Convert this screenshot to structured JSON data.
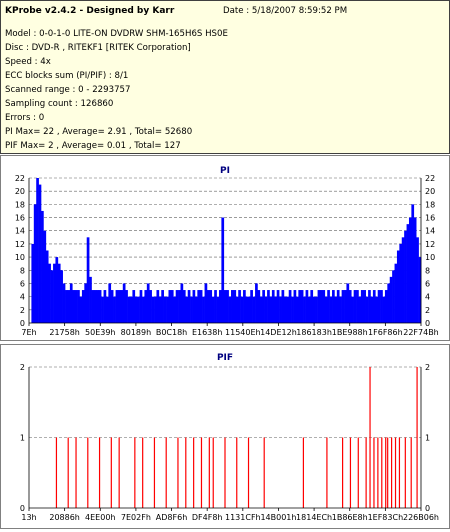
{
  "info": {
    "title": "KProbe v2.4.2 - Designed by Karr",
    "date": "Date : 5/18/2007 8:59:52 PM",
    "lines": [
      "Model : 0-0-1-0 LITE-ON DVDRW SHM-165H6S HS0E",
      "Disc : DVD-R , RITEKF1 [RITEK Corporation]",
      "Speed : 4x",
      "ECC blocks sum (PI/PIF) : 8/1",
      "Scanned range : 0 - 2293757",
      "Sampling count : 126860",
      "Errors : 0",
      "PI Max= 22 , Average= 2.91 , Total= 52680",
      "PIF Max= 2 , Average= 0.01 , Total= 127"
    ]
  },
  "colors": {
    "pi": "#0000ff",
    "pif": "#ff0000",
    "title": "#000080",
    "info_bg": "#ffffe1"
  },
  "chart_data": [
    {
      "type": "bar",
      "title": "PI",
      "ylim": [
        0,
        22
      ],
      "yticks": [
        0,
        2,
        4,
        6,
        8,
        10,
        12,
        14,
        16,
        18,
        20,
        22
      ],
      "xticks": [
        "7Eh",
        "21758h",
        "50E39h",
        "80189h",
        "B0C18h",
        "E1638h",
        "11540Eh",
        "14DE12h",
        "186183h",
        "1BE988h",
        "1F6F86h",
        "22F74Bh"
      ],
      "grid": "dashed-horizontal",
      "legend": "none",
      "series": [
        {
          "values": [
            0,
            12,
            18,
            22,
            21,
            17,
            14,
            11,
            9,
            8,
            9,
            10,
            9,
            8,
            6,
            5,
            5,
            6,
            5,
            5,
            5,
            4,
            5,
            6,
            13,
            7,
            5,
            5,
            5,
            5,
            4,
            5,
            4,
            6,
            5,
            4,
            5,
            5,
            5,
            6,
            5,
            4,
            4,
            5,
            4,
            4,
            5,
            4,
            5,
            6,
            5,
            4,
            4,
            5,
            4,
            5,
            4,
            4,
            5,
            5,
            4,
            5,
            5,
            6,
            5,
            4,
            5,
            4,
            5,
            4,
            5,
            5,
            4,
            6,
            5,
            5,
            4,
            5,
            4,
            5,
            16,
            5,
            5,
            4,
            5,
            5,
            4,
            5,
            4,
            5,
            4,
            4,
            5,
            4,
            6,
            5,
            4,
            5,
            4,
            5,
            4,
            5,
            4,
            5,
            4,
            5,
            4,
            4,
            5,
            4,
            5,
            4,
            5,
            5,
            4,
            5,
            4,
            5,
            4,
            4,
            5,
            5,
            5,
            4,
            5,
            4,
            5,
            4,
            5,
            4,
            5,
            5,
            6,
            5,
            4,
            5,
            5,
            4,
            5,
            5,
            4,
            5,
            4,
            5,
            4,
            5,
            5,
            4,
            5,
            6,
            7,
            8,
            9,
            11,
            12,
            13,
            14,
            15,
            16,
            18,
            16,
            13,
            10
          ]
        }
      ]
    },
    {
      "type": "bar",
      "title": "PIF",
      "ylim": [
        0,
        2
      ],
      "yticks": [
        0,
        1,
        2
      ],
      "xticks": [
        "13h",
        "20886h",
        "4EE00h",
        "7E02Fh",
        "AD8F6h",
        "DF4F8h",
        "1131CFh",
        "14B001h",
        "1814ECh",
        "1B86E8h",
        "1EF83Ch",
        "226B06h"
      ],
      "grid": "dashed-horizontal",
      "legend": "none",
      "series": [
        {
          "positions": [
            0.07,
            0.1,
            0.12,
            0.15,
            0.18,
            0.21,
            0.23,
            0.27,
            0.29,
            0.32,
            0.35,
            0.38,
            0.4,
            0.42,
            0.44,
            0.46,
            0.47,
            0.5,
            0.53,
            0.56,
            0.6,
            0.7,
            0.76,
            0.8,
            0.82,
            0.84,
            0.86,
            0.87,
            0.88,
            0.89,
            0.9,
            0.91,
            0.915,
            0.925,
            0.935,
            0.945,
            0.96,
            0.975,
            0.99
          ],
          "values": [
            1,
            1,
            1,
            1,
            1,
            1,
            1,
            1,
            1,
            1,
            1,
            1,
            1,
            1,
            1,
            1,
            1,
            1,
            1,
            1,
            1,
            1,
            1,
            1,
            1,
            1,
            1,
            2,
            1,
            1,
            1,
            1,
            1,
            1,
            1,
            1,
            1,
            1,
            2
          ]
        }
      ]
    }
  ]
}
